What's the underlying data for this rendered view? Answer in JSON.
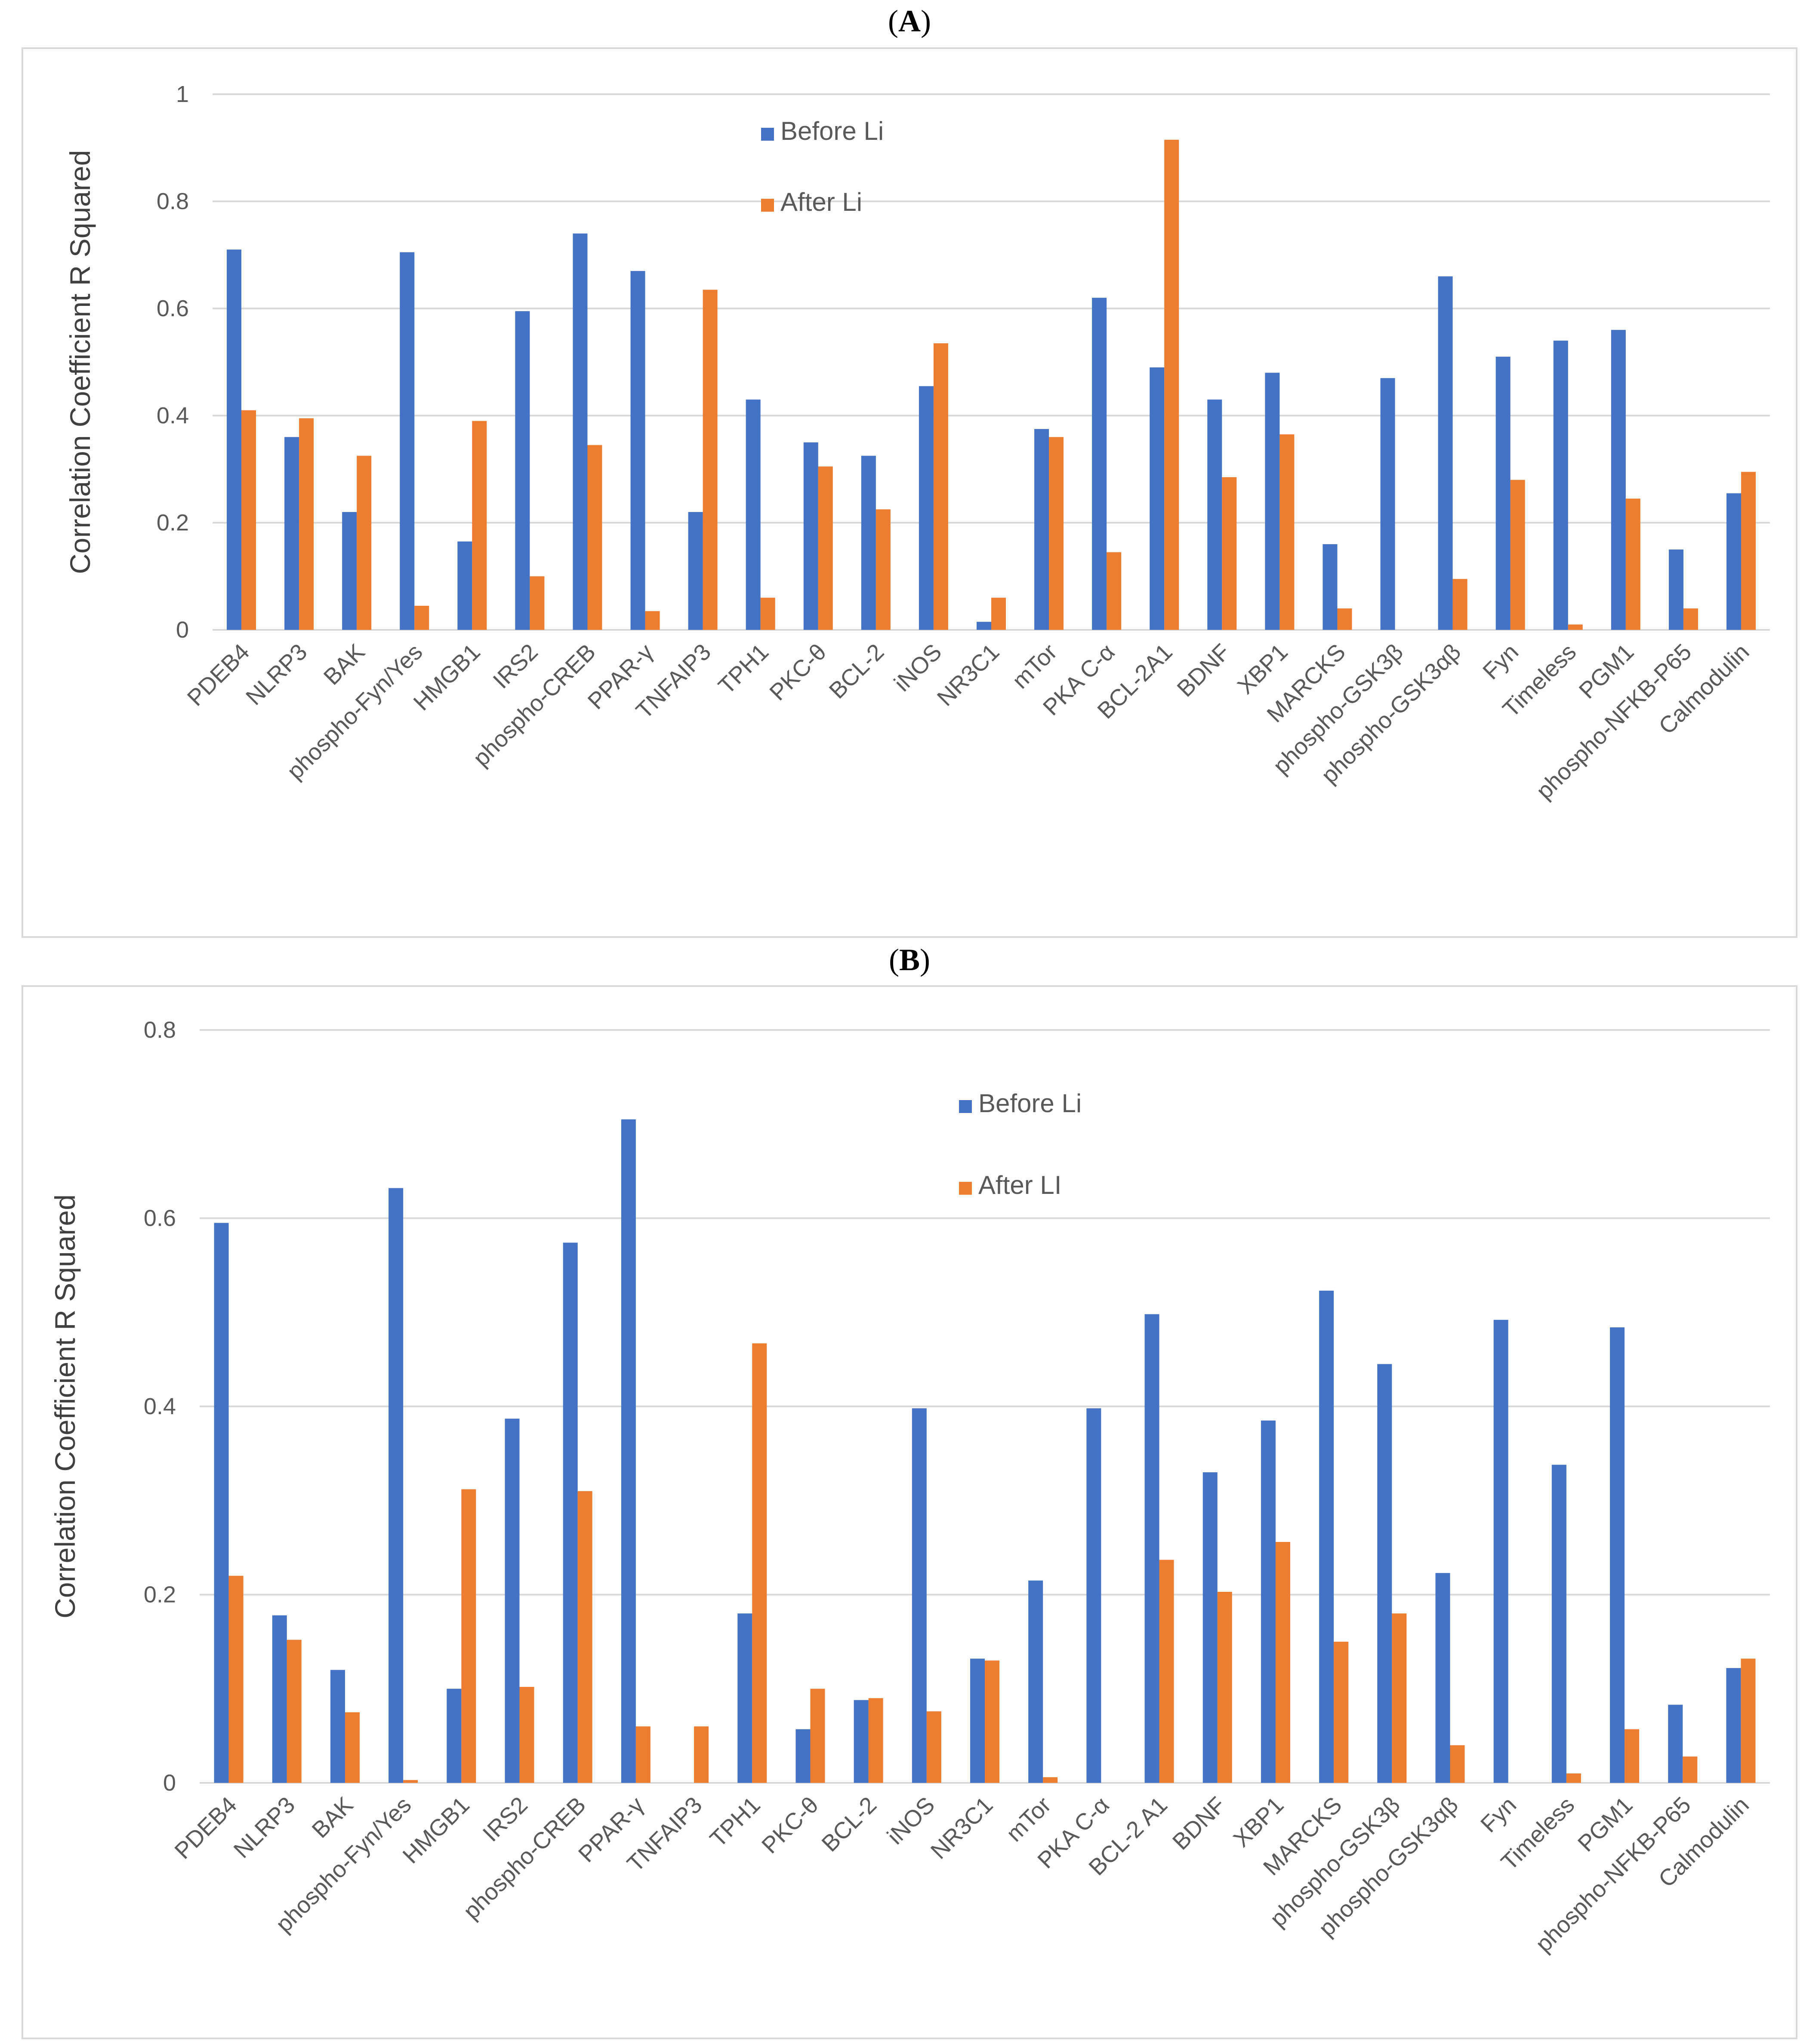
{
  "colors": {
    "before": "#4472C4",
    "after": "#ED7D31",
    "grid": "#d9d9d9",
    "text": "#595959"
  },
  "chart_data": [
    {
      "type": "bar",
      "panel_label": "A",
      "ylabel": "Correlation Coefficient R Squared",
      "ylim": [
        0,
        1
      ],
      "yticks": [
        0,
        0.2,
        0.4,
        0.6,
        0.8,
        1
      ],
      "ytick_labels": [
        "0",
        "0.2",
        "0.4",
        "0.6",
        "0.8",
        "1"
      ],
      "grid": true,
      "legend_position": "top-center",
      "categories": [
        "PDEB4",
        "NLRP3",
        "BAK",
        "phospho-Fyn/Yes",
        "HMGB1",
        "IRS2",
        "phospho-CREB",
        "PPAR-γ",
        "TNFAIP3",
        "TPH1",
        "PKC-θ",
        "BCL-2",
        "iNOS",
        "NR3C1",
        "mTor",
        "PKA C-α",
        "BCL-2A1",
        "BDNF",
        "XBP1",
        "MARCKS",
        "phospho-GSK3β",
        "phospho-GSK3αβ",
        "Fyn",
        "Timeless",
        "PGM1",
        "phospho-NFKB-P65",
        "Calmodulin"
      ],
      "series": [
        {
          "name": "Before Li",
          "values": [
            0.71,
            0.36,
            0.22,
            0.705,
            0.165,
            0.595,
            0.74,
            0.67,
            0.22,
            0.43,
            0.35,
            0.325,
            0.455,
            0.015,
            0.375,
            0.62,
            0.49,
            0.43,
            0.48,
            0.16,
            0.47,
            0.66,
            0.51,
            0.54,
            0.56,
            0.15,
            0.255
          ]
        },
        {
          "name": "After Li",
          "values": [
            0.41,
            0.395,
            0.325,
            0.045,
            0.39,
            0.1,
            0.345,
            0.035,
            0.635,
            0.06,
            0.305,
            0.225,
            0.535,
            0.06,
            0.36,
            0.145,
            0.915,
            0.285,
            0.365,
            0.04,
            0.0,
            0.095,
            0.28,
            0.01,
            0.245,
            0.04,
            0.295
          ]
        }
      ]
    },
    {
      "type": "bar",
      "panel_label": "B",
      "ylabel": "Correlation Coefficient R Squared",
      "ylim": [
        0,
        0.8
      ],
      "yticks": [
        0,
        0.2,
        0.4,
        0.6,
        0.8
      ],
      "ytick_labels": [
        "0",
        "0.2",
        "0.4",
        "0.6",
        "0.8"
      ],
      "grid": true,
      "legend_position": "top-center",
      "categories": [
        "PDEB4",
        "NLRP3",
        "BAK",
        "phospho-Fyn/Yes",
        "HMGB1",
        "IRS2",
        "phospho-CREB",
        "PPAR-γ",
        "TNFAIP3",
        "TPH1",
        "PKC-θ",
        "BCL-2",
        "iNOS",
        "NR3C1",
        "mTor",
        "PKA C-α",
        "BCL-2 A1",
        "BDNF",
        "XBP1",
        "MARCKS",
        "phospho-GSK3β",
        "phospho-GSK3αβ",
        "Fyn",
        "Timeless",
        "PGM1",
        "phospho-NFKB-P65",
        "Calmodulin"
      ],
      "series": [
        {
          "name": "Before Li",
          "values": [
            0.595,
            0.178,
            0.12,
            0.632,
            0.1,
            0.387,
            0.574,
            0.705,
            0.0,
            0.18,
            0.057,
            0.088,
            0.398,
            0.132,
            0.215,
            0.398,
            0.498,
            0.33,
            0.385,
            0.523,
            0.445,
            0.223,
            0.492,
            0.338,
            0.484,
            0.083,
            0.122
          ]
        },
        {
          "name": "After LI",
          "values": [
            0.22,
            0.152,
            0.075,
            0.003,
            0.312,
            0.102,
            0.31,
            0.06,
            0.06,
            0.467,
            0.1,
            0.09,
            0.076,
            0.13,
            0.006,
            0.0,
            0.237,
            0.203,
            0.256,
            0.15,
            0.18,
            0.04,
            0.0,
            0.01,
            0.057,
            0.028,
            0.132
          ]
        }
      ]
    }
  ]
}
